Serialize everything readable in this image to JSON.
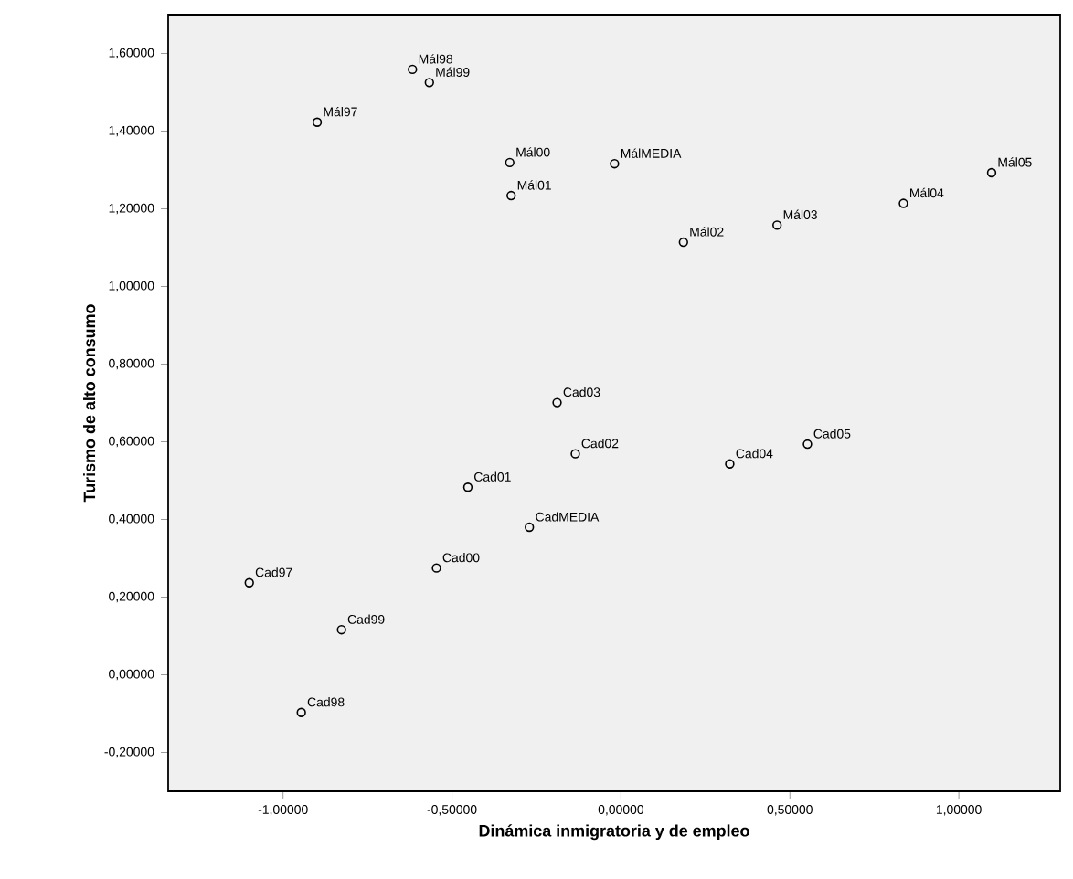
{
  "chart_data": {
    "type": "scatter",
    "xlabel": "Dinámica inmigratoria y de empleo",
    "ylabel": "Turismo de alto consumo",
    "x": [
      -0.899,
      -0.617,
      -0.567,
      -0.329,
      -0.325,
      -0.019,
      0.185,
      0.462,
      0.836,
      1.097,
      -1.1,
      -0.946,
      -0.827,
      -0.546,
      -0.453,
      -0.135,
      -0.189,
      0.322,
      0.552,
      -0.271
    ],
    "series": [
      {
        "color": "#000000",
        "values": [
          1.423,
          1.559,
          1.525,
          1.319,
          1.234,
          1.316,
          1.114,
          1.158,
          1.214,
          1.293,
          0.237,
          -0.097,
          0.116,
          0.275,
          0.483,
          0.569,
          0.701,
          0.543,
          0.594,
          0.38
        ]
      }
    ],
    "annotations": [
      {
        "text": "Mál97",
        "x": -0.899,
        "y": 1.423
      },
      {
        "text": "Mál98",
        "x": -0.617,
        "y": 1.559
      },
      {
        "text": "Mál99",
        "x": -0.567,
        "y": 1.525
      },
      {
        "text": "Mál00",
        "x": -0.329,
        "y": 1.319
      },
      {
        "text": "Mál01",
        "x": -0.325,
        "y": 1.234
      },
      {
        "text": "MálMEDIA",
        "x": -0.019,
        "y": 1.316
      },
      {
        "text": "Mál02",
        "x": 0.185,
        "y": 1.114
      },
      {
        "text": "Mál03",
        "x": 0.462,
        "y": 1.158
      },
      {
        "text": "Mál04",
        "x": 0.836,
        "y": 1.214
      },
      {
        "text": "Mál05",
        "x": 1.097,
        "y": 1.293
      },
      {
        "text": "Cad97",
        "x": -1.1,
        "y": 0.237
      },
      {
        "text": "Cad98",
        "x": -0.946,
        "y": -0.097
      },
      {
        "text": "Cad99",
        "x": -0.827,
        "y": 0.116
      },
      {
        "text": "Cad00",
        "x": -0.546,
        "y": 0.275
      },
      {
        "text": "Cad01",
        "x": -0.453,
        "y": 0.483
      },
      {
        "text": "Cad02",
        "x": -0.135,
        "y": 0.569
      },
      {
        "text": "Cad03",
        "x": -0.189,
        "y": 0.701
      },
      {
        "text": "Cad04",
        "x": 0.322,
        "y": 0.543
      },
      {
        "text": "Cad05",
        "x": 0.552,
        "y": 0.594
      },
      {
        "text": "CadMEDIA",
        "x": -0.271,
        "y": 0.38
      }
    ],
    "xlim": [
      -1.34,
      1.3
    ],
    "ylim": [
      -0.3,
      1.7
    ],
    "xticks": [
      {
        "value": -1,
        "label": "-1,00000"
      },
      {
        "value": -0.5,
        "label": "-0,50000"
      },
      {
        "value": 0,
        "label": "0,00000"
      },
      {
        "value": 0.5,
        "label": "0,50000"
      },
      {
        "value": 1,
        "label": "1,00000"
      }
    ],
    "yticks": [
      {
        "value": -0.2,
        "label": "-0,20000"
      },
      {
        "value": 0,
        "label": "0,00000"
      },
      {
        "value": 0.2,
        "label": "0,20000"
      },
      {
        "value": 0.4,
        "label": "0,40000"
      },
      {
        "value": 0.6,
        "label": "0,60000"
      },
      {
        "value": 0.8,
        "label": "0,80000"
      },
      {
        "value": 1.0,
        "label": "1,00000"
      },
      {
        "value": 1.2,
        "label": "1,20000"
      },
      {
        "value": 1.4,
        "label": "1,40000"
      },
      {
        "value": 1.6,
        "label": "1,60000"
      }
    ],
    "marker": "circle",
    "grid": false
  }
}
